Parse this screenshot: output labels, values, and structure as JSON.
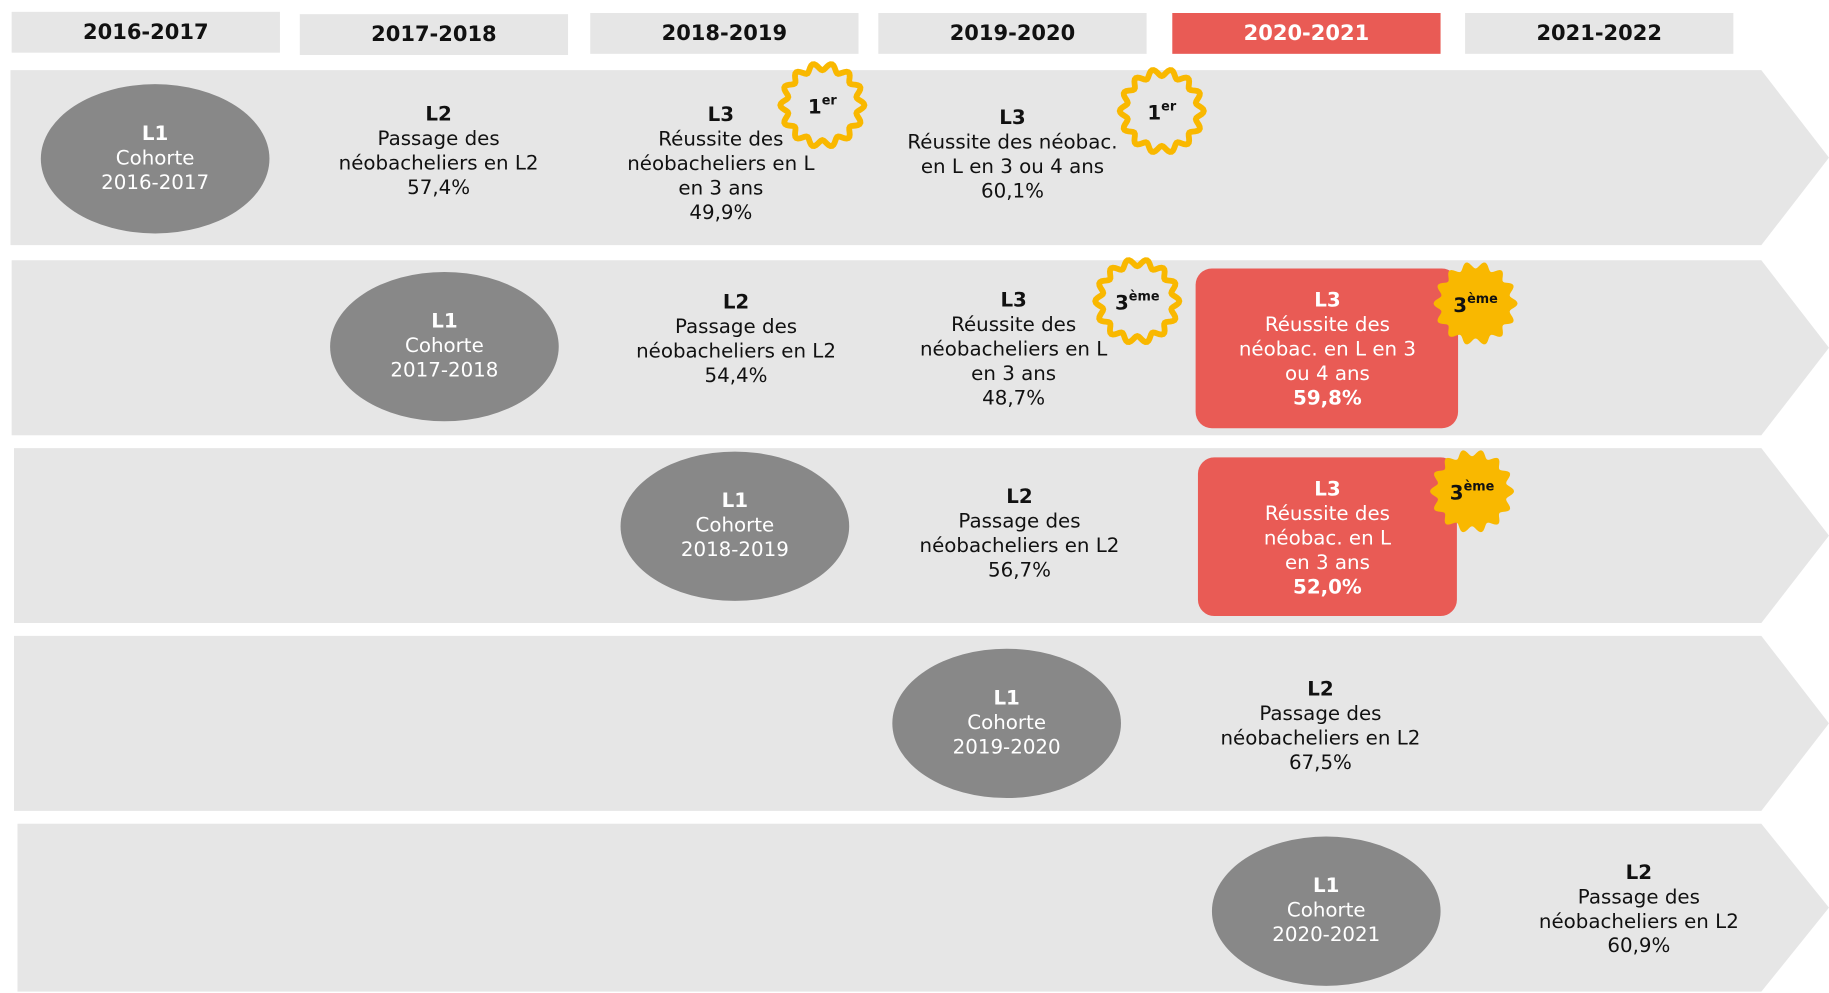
{
  "years": [
    {
      "label": "2016-2017",
      "highlight": false
    },
    {
      "label": "2017-2018",
      "highlight": false
    },
    {
      "label": "2018-2019",
      "highlight": false
    },
    {
      "label": "2019-2020",
      "highlight": false
    },
    {
      "label": "2020-2021",
      "highlight": true
    },
    {
      "label": "2021-2022",
      "highlight": false
    }
  ],
  "rows": [
    {
      "items": [
        {
          "kind": "cohort",
          "title": "L1",
          "lines": [
            "Cohorte",
            "2016-2017"
          ]
        },
        {
          "kind": "step",
          "title": "L2",
          "lines": [
            "Passage des",
            "néobacheliers en L2",
            "57,4%"
          ]
        },
        {
          "kind": "step",
          "title": "L3",
          "lines": [
            "Réussite des",
            "néobacheliers en L",
            "en 3 ans",
            "49,9%"
          ],
          "badge": {
            "num": "1",
            "sup": "er",
            "style": "outline"
          }
        },
        {
          "kind": "step",
          "title": "L3",
          "lines": [
            "Réussite des néobac.",
            "en L en 3 ou 4 ans",
            "60,1%"
          ],
          "badge": {
            "num": "1",
            "sup": "er",
            "style": "outline"
          }
        }
      ]
    },
    {
      "items": [
        {
          "kind": "cohort",
          "title": "L1",
          "lines": [
            "Cohorte",
            "2017-2018"
          ]
        },
        {
          "kind": "step",
          "title": "L2",
          "lines": [
            "Passage des",
            "néobacheliers en L2",
            "54,4%"
          ]
        },
        {
          "kind": "step",
          "title": "L3",
          "lines": [
            "Réussite des",
            "néobacheliers en L",
            "en 3 ans",
            "48,7%"
          ],
          "badge": {
            "num": "3",
            "sup": "ème",
            "style": "outline"
          }
        },
        {
          "kind": "highlight",
          "title": "L3",
          "lines": [
            "Réussite des",
            "néobac. en L en 3",
            "ou 4 ans",
            "59,8%"
          ],
          "badge": {
            "num": "3",
            "sup": "ème",
            "style": "filled"
          }
        }
      ]
    },
    {
      "items": [
        {
          "kind": "cohort",
          "title": "L1",
          "lines": [
            "Cohorte",
            "2018-2019"
          ]
        },
        {
          "kind": "step",
          "title": "L2",
          "lines": [
            "Passage des",
            "néobacheliers en L2",
            "56,7%"
          ]
        },
        {
          "kind": "highlight",
          "title": "L3",
          "lines": [
            "Réussite des",
            "néobac. en L",
            "en 3 ans",
            "52,0%"
          ],
          "badge": {
            "num": "3",
            "sup": "ème",
            "style": "filled"
          }
        }
      ]
    },
    {
      "items": [
        {
          "kind": "cohort",
          "title": "L1",
          "lines": [
            "Cohorte",
            "2019-2020"
          ]
        },
        {
          "kind": "step",
          "title": "L2",
          "lines": [
            "Passage des",
            "néobacheliers en L2",
            "67,5%"
          ]
        }
      ]
    },
    {
      "items": [
        {
          "kind": "cohort",
          "title": "L1",
          "lines": [
            "Cohorte",
            "2020-2021"
          ]
        },
        {
          "kind": "step",
          "title": "L2",
          "lines": [
            "Passage des",
            "néobacheliers en L2",
            "60,9%"
          ]
        }
      ]
    }
  ]
}
